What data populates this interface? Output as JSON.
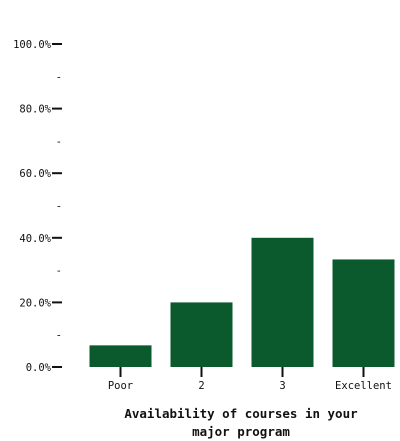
{
  "chart_data": {
    "type": "bar",
    "title_lines": [
      "Availability of courses in your",
      "major program"
    ],
    "categories": [
      "Poor",
      "2",
      "3",
      "Excellent"
    ],
    "values": [
      6.7,
      20.0,
      40.0,
      33.3
    ],
    "ylim": [
      0,
      100
    ],
    "y_major_ticks": [
      0,
      20,
      40,
      60,
      80,
      100
    ],
    "y_minor_ticks": [
      10,
      30,
      50,
      70,
      90
    ],
    "y_tick_labels": [
      "0.0%",
      "20.0%",
      "40.0%",
      "60.0%",
      "80.0%",
      "100.0%"
    ],
    "minor_tick_label": "-",
    "grid": false,
    "legend": "none",
    "bar_color": "#0b5a2e"
  }
}
